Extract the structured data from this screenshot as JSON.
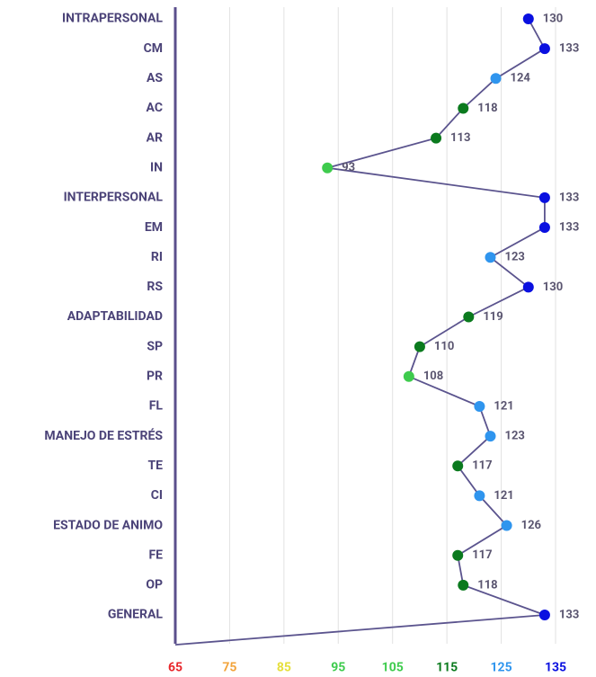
{
  "chart_data": {
    "type": "line",
    "orientation": "horizontal",
    "categories": [
      "INTRAPERSONAL",
      "CM",
      "AS",
      "AC",
      "AR",
      "IN",
      "INTERPERSONAL",
      "EM",
      "RI",
      "RS",
      "ADAPTABILIDAD",
      "SP",
      "PR",
      "FL",
      "MANEJO DE ESTRÉS",
      "TE",
      "CI",
      "ESTADO DE ANIMO",
      "FE",
      "OP",
      "GENERAL",
      null
    ],
    "values": [
      130,
      133,
      124,
      118,
      113,
      93,
      133,
      133,
      123,
      130,
      119,
      110,
      108,
      121,
      123,
      117,
      121,
      126,
      117,
      118,
      133,
      65
    ],
    "point_colors": [
      "#0a10e0",
      "#0a10e0",
      "#2f95ee",
      "#0b7a1e",
      "#0b7a1e",
      "#3ecb4d",
      "#0a10e0",
      "#0a10e0",
      "#2f95ee",
      "#0a10e0",
      "#0b7a1e",
      "#0b7a1e",
      "#3ecb4d",
      "#2f95ee",
      "#2f95ee",
      "#0b7a1e",
      "#2f95ee",
      "#2f95ee",
      "#0b7a1e",
      "#0b7a1e",
      "#0a10e0",
      null
    ],
    "line_color": "#5b548e",
    "xlim": [
      65,
      135
    ],
    "xticks": [
      65,
      75,
      85,
      95,
      105,
      115,
      125,
      135
    ],
    "xtick_colors": [
      "#e8262b",
      "#f2a33a",
      "#e6df3c",
      "#3ecb4d",
      "#3ecb4d",
      "#0b7a1e",
      "#2f95ee",
      "#0a10e0"
    ],
    "grid": true
  }
}
